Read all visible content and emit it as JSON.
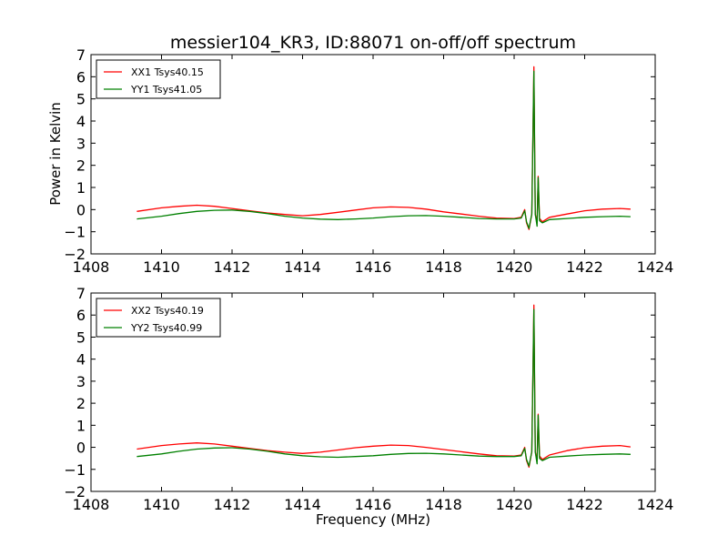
{
  "chart_data": [
    {
      "type": "line",
      "title": "messier104_KR3, ID:88071 on-off/off spectrum",
      "xlabel": "",
      "ylabel": "Power in Kelvin",
      "xlim": [
        1408,
        1424
      ],
      "ylim": [
        -2,
        7
      ],
      "xticks": [
        "1408",
        "1410",
        "1412",
        "1414",
        "1416",
        "1418",
        "1420",
        "1422",
        "1424"
      ],
      "yticks": [
        "−2",
        "−1",
        "0",
        "1",
        "2",
        "3",
        "4",
        "5",
        "6",
        "7"
      ],
      "legend_position": "top-left",
      "grid": false,
      "series": [
        {
          "name": "XX1 Tsys40.15",
          "color": "#ff0000",
          "x": [
            1409.3,
            1410.0,
            1410.5,
            1411.0,
            1411.5,
            1412.0,
            1412.5,
            1413.0,
            1413.5,
            1414.0,
            1414.5,
            1415.0,
            1415.5,
            1416.0,
            1416.5,
            1417.0,
            1417.5,
            1418.0,
            1418.5,
            1419.0,
            1419.5,
            1420.0,
            1420.2,
            1420.3,
            1420.35,
            1420.42,
            1420.5,
            1420.56,
            1420.6,
            1420.65,
            1420.68,
            1420.72,
            1420.8,
            1421.0,
            1421.5,
            1422.0,
            1422.5,
            1423.0,
            1423.3
          ],
          "y": [
            -0.08,
            0.08,
            0.15,
            0.2,
            0.15,
            0.05,
            -0.05,
            -0.15,
            -0.22,
            -0.28,
            -0.22,
            -0.12,
            -0.02,
            0.08,
            0.12,
            0.1,
            0.02,
            -0.1,
            -0.2,
            -0.3,
            -0.38,
            -0.4,
            -0.35,
            0.0,
            -0.6,
            -0.9,
            -0.2,
            6.45,
            -0.2,
            -0.6,
            1.5,
            -0.4,
            -0.55,
            -0.35,
            -0.2,
            -0.05,
            0.02,
            0.05,
            0.02
          ]
        },
        {
          "name": "YY1 Tsys41.05",
          "color": "#008000",
          "x": [
            1409.3,
            1410.0,
            1410.5,
            1411.0,
            1411.5,
            1412.0,
            1412.5,
            1413.0,
            1413.5,
            1414.0,
            1414.5,
            1415.0,
            1415.5,
            1416.0,
            1416.5,
            1417.0,
            1417.5,
            1418.0,
            1418.5,
            1419.0,
            1419.5,
            1420.0,
            1420.2,
            1420.3,
            1420.35,
            1420.42,
            1420.5,
            1420.56,
            1420.6,
            1420.65,
            1420.68,
            1420.72,
            1420.8,
            1421.0,
            1421.5,
            1422.0,
            1422.5,
            1423.0,
            1423.3
          ],
          "y": [
            -0.42,
            -0.3,
            -0.18,
            -0.08,
            -0.03,
            -0.02,
            -0.08,
            -0.18,
            -0.3,
            -0.38,
            -0.43,
            -0.45,
            -0.42,
            -0.38,
            -0.32,
            -0.28,
            -0.27,
            -0.3,
            -0.35,
            -0.4,
            -0.42,
            -0.42,
            -0.38,
            -0.05,
            -0.55,
            -0.85,
            -0.2,
            6.25,
            -0.2,
            -0.75,
            1.45,
            -0.5,
            -0.6,
            -0.45,
            -0.4,
            -0.35,
            -0.32,
            -0.3,
            -0.32
          ]
        }
      ]
    },
    {
      "type": "line",
      "title": "",
      "xlabel": "Frequency (MHz)",
      "ylabel": "",
      "xlim": [
        1408,
        1424
      ],
      "ylim": [
        -2,
        7
      ],
      "xticks": [
        "1408",
        "1410",
        "1412",
        "1414",
        "1416",
        "1418",
        "1420",
        "1422",
        "1424"
      ],
      "yticks": [
        "−2",
        "−1",
        "0",
        "1",
        "2",
        "3",
        "4",
        "5",
        "6",
        "7"
      ],
      "legend_position": "top-left",
      "grid": false,
      "series": [
        {
          "name": "XX2 Tsys40.19",
          "color": "#ff0000",
          "x": [
            1409.3,
            1410.0,
            1410.5,
            1411.0,
            1411.5,
            1412.0,
            1412.5,
            1413.0,
            1413.5,
            1414.0,
            1414.5,
            1415.0,
            1415.5,
            1416.0,
            1416.5,
            1417.0,
            1417.5,
            1418.0,
            1418.5,
            1419.0,
            1419.5,
            1420.0,
            1420.2,
            1420.3,
            1420.35,
            1420.42,
            1420.5,
            1420.56,
            1420.6,
            1420.65,
            1420.68,
            1420.72,
            1420.8,
            1421.0,
            1421.5,
            1422.0,
            1422.5,
            1423.0,
            1423.3
          ],
          "y": [
            -0.08,
            0.08,
            0.15,
            0.2,
            0.15,
            0.05,
            -0.05,
            -0.15,
            -0.22,
            -0.28,
            -0.22,
            -0.12,
            -0.02,
            0.05,
            0.1,
            0.08,
            0.0,
            -0.1,
            -0.2,
            -0.3,
            -0.38,
            -0.4,
            -0.35,
            0.0,
            -0.6,
            -0.9,
            -0.2,
            6.45,
            -0.2,
            -0.6,
            1.5,
            -0.4,
            -0.55,
            -0.35,
            -0.15,
            -0.02,
            0.05,
            0.08,
            0.02
          ]
        },
        {
          "name": "YY2 Tsys40.99",
          "color": "#008000",
          "x": [
            1409.3,
            1410.0,
            1410.5,
            1411.0,
            1411.5,
            1412.0,
            1412.5,
            1413.0,
            1413.5,
            1414.0,
            1414.5,
            1415.0,
            1415.5,
            1416.0,
            1416.5,
            1417.0,
            1417.5,
            1418.0,
            1418.5,
            1419.0,
            1419.5,
            1420.0,
            1420.2,
            1420.3,
            1420.35,
            1420.42,
            1420.5,
            1420.56,
            1420.6,
            1420.65,
            1420.68,
            1420.72,
            1420.8,
            1421.0,
            1421.5,
            1422.0,
            1422.5,
            1423.0,
            1423.3
          ],
          "y": [
            -0.42,
            -0.3,
            -0.18,
            -0.08,
            -0.03,
            -0.02,
            -0.08,
            -0.18,
            -0.3,
            -0.38,
            -0.43,
            -0.45,
            -0.42,
            -0.38,
            -0.32,
            -0.28,
            -0.27,
            -0.3,
            -0.35,
            -0.4,
            -0.42,
            -0.42,
            -0.38,
            -0.05,
            -0.55,
            -0.85,
            -0.2,
            6.25,
            -0.2,
            -0.75,
            1.45,
            -0.5,
            -0.6,
            -0.45,
            -0.4,
            -0.35,
            -0.32,
            -0.3,
            -0.32
          ]
        }
      ]
    }
  ]
}
